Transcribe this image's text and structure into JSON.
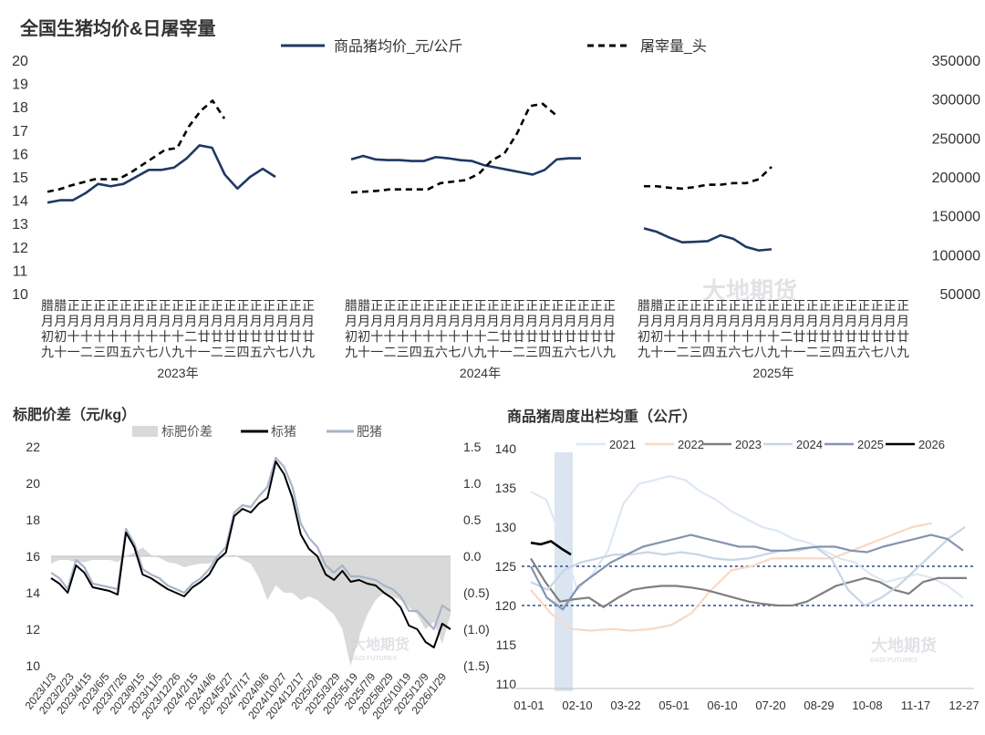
{
  "colors": {
    "navy": "#1f3864",
    "gray": "#999999",
    "shade": "#d9d9d9",
    "black": "#000000",
    "fat": "#a7b4c9",
    "band": "#dbe5f1",
    "ref": "#2e4a8a"
  },
  "watermark": {
    "cn": "大地期货",
    "en": "DADI FUTURES"
  },
  "chart_data": [
    {
      "type": "line",
      "title": "全国生猪均价&日屠宰量",
      "legend": [
        "商品猪均价_元/公斤",
        "屠宰量_头"
      ],
      "ylim": [
        10,
        20
      ],
      "yticks": [
        "20",
        "19",
        "18",
        "17",
        "16",
        "15",
        "14",
        "13",
        "12",
        "11",
        "10"
      ],
      "y2lim": [
        50000,
        350000
      ],
      "y2ticks": [
        "350000",
        "300000",
        "250000",
        "200000",
        "150000",
        "100000",
        "50000"
      ],
      "x_tick_labels": [
        "腊月初九",
        "腊月初十",
        "正月十一",
        "正月十二",
        "正月十三",
        "正月十四",
        "正月十五",
        "正月十六",
        "正月十七",
        "正月十八",
        "正月十九",
        "正月二十",
        "正月廿一",
        "正月廿二",
        "正月廿三",
        "正月廿四",
        "正月廿五",
        "正月廿六",
        "正月廿七",
        "正月廿八",
        "正月廿九"
      ],
      "groups": [
        {
          "name": "2023年",
          "price": [
            13.9,
            14.0,
            14.0,
            14.3,
            14.7,
            14.6,
            14.7,
            15.0,
            15.3,
            15.3,
            15.4,
            15.8,
            16.35,
            16.25,
            15.1,
            14.5,
            15.0,
            15.35,
            15.0
          ],
          "slaughter": [
            181000,
            184000,
            189000,
            193000,
            197000,
            197000,
            197000,
            205000,
            215000,
            225000,
            235000,
            237000,
            265000,
            285000,
            298000,
            275000
          ]
        },
        {
          "name": "2024年",
          "price": [
            15.75,
            15.9,
            15.75,
            15.72,
            15.72,
            15.68,
            15.68,
            15.85,
            15.8,
            15.72,
            15.68,
            15.5,
            15.4,
            15.3,
            15.2,
            15.1,
            15.3,
            15.75,
            15.8,
            15.8
          ],
          "slaughter": [
            180000,
            181000,
            182000,
            184000,
            184000,
            184000,
            184000,
            192000,
            194000,
            196000,
            204000,
            221000,
            230000,
            256000,
            291000,
            294000,
            280000
          ]
        },
        {
          "name": "2025年",
          "price": [
            12.8,
            12.65,
            12.4,
            12.2,
            12.22,
            12.25,
            12.5,
            12.35,
            12.0,
            11.85,
            11.9
          ],
          "slaughter": [
            188000,
            188000,
            186000,
            185000,
            187000,
            190000,
            190000,
            192000,
            192000,
            197000,
            213000
          ]
        }
      ]
    },
    {
      "type": "area",
      "title": "标肥价差（元/kg）",
      "legend": [
        "标肥价差",
        "标猪",
        "肥猪"
      ],
      "ylim": [
        10,
        22
      ],
      "yticks": [
        "22",
        "20",
        "18",
        "16",
        "14",
        "12",
        "10"
      ],
      "y2lim": [
        -1.5,
        1.5
      ],
      "y2ticks": [
        "1.5",
        "1.0",
        "0.5",
        "0.0",
        "(0.5)",
        "(1.0)",
        "(1.5)"
      ],
      "x_tick_labels": [
        "2023/1/3",
        "2023/2/23",
        "2023/4/15",
        "2023/6/5",
        "2023/7/26",
        "2023/9/15",
        "2023/11/5",
        "2023/12/26",
        "2024/2/15",
        "2024/4/6",
        "2024/5/27",
        "2024/7/17",
        "2024/9/6",
        "2024/10/27",
        "2024/12/17",
        "2025/2/6",
        "2025/3/29",
        "2025/5/19",
        "2025/7/9",
        "2025/8/29",
        "2025/10/19",
        "2025/12/9",
        "2026/1/29"
      ],
      "standard": [
        14.8,
        14.5,
        14.0,
        15.5,
        15.1,
        14.3,
        14.2,
        14.1,
        13.9,
        17.3,
        16.5,
        15.0,
        14.8,
        14.5,
        14.2,
        14.0,
        13.8,
        14.3,
        14.6,
        15.0,
        15.8,
        16.2,
        18.2,
        18.6,
        18.4,
        18.9,
        19.2,
        21.2,
        20.5,
        19.2,
        17.2,
        16.4,
        16.0,
        15.0,
        14.7,
        15.2,
        14.6,
        14.7,
        14.5,
        14.4,
        14.0,
        13.7,
        13.2,
        12.2,
        12.0,
        11.3,
        11.0,
        12.3,
        12.0
      ],
      "fat": [
        15.1,
        14.8,
        14.2,
        15.8,
        15.4,
        14.5,
        14.4,
        14.3,
        14.2,
        17.5,
        16.7,
        15.3,
        15.0,
        14.8,
        14.4,
        14.2,
        14.0,
        14.5,
        14.8,
        15.3,
        16.0,
        16.5,
        18.4,
        18.8,
        18.7,
        19.3,
        19.8,
        21.4,
        20.9,
        19.8,
        17.8,
        17.0,
        16.5,
        15.5,
        15.1,
        15.5,
        14.9,
        14.9,
        14.8,
        14.7,
        14.4,
        14.2,
        13.8,
        13.0,
        13.0,
        12.5,
        12.0,
        13.3,
        13.0
      ],
      "spread": [
        -0.1,
        -0.05,
        -0.05,
        -0.08,
        -0.08,
        -0.05,
        -0.05,
        -0.05,
        -0.08,
        0.0,
        0.05,
        0.12,
        0.02,
        -0.02,
        -0.08,
        -0.1,
        -0.15,
        -0.12,
        -0.1,
        -0.1,
        -0.05,
        0.0,
        0.02,
        -0.05,
        -0.1,
        -0.3,
        -0.6,
        -0.4,
        -0.5,
        -0.5,
        -0.6,
        -0.55,
        -0.6,
        -0.7,
        -0.8,
        -1.0,
        -1.5,
        -1.1,
        -0.8,
        -0.6,
        -0.5,
        -0.55,
        -0.6,
        -0.7,
        -0.8,
        -1.0,
        -0.9,
        -1.2,
        -0.8
      ]
    },
    {
      "type": "line",
      "title": "商品猪周度出栏均重（公斤）",
      "legend": [
        "2021",
        "2022",
        "2023",
        "2024",
        "2025",
        "2026"
      ],
      "ylim": [
        110,
        140
      ],
      "yticks": [
        "140",
        "135",
        "130",
        "125",
        "120",
        "115",
        "110"
      ],
      "x_tick_labels": [
        "01-01",
        "02-10",
        "03-22",
        "05-01",
        "06-10",
        "07-20",
        "08-29",
        "10-08",
        "11-17",
        "12-27"
      ],
      "ref_lines": [
        125,
        120
      ],
      "series": [
        {
          "name": "2021",
          "color": "#dde8f4",
          "values": [
            134.5,
            133.5,
            128.5,
            122.0,
            124.0,
            127.0,
            133.0,
            135.5,
            136.0,
            136.5,
            136.0,
            134.5,
            133.5,
            132.0,
            131.0,
            130.0,
            129.5,
            128.5,
            128.0,
            127.0,
            126.0,
            125.5,
            124.0,
            123.0,
            123.5,
            124.0,
            123.5,
            122.5,
            121.0
          ]
        },
        {
          "name": "2022",
          "color": "#f8d9c4",
          "values": [
            122.0,
            119.0,
            117.0,
            116.8,
            117.0,
            116.8,
            117.0,
            117.5,
            119.0,
            122.0,
            124.5,
            125.0,
            126.0,
            126.0,
            126.0,
            126.0,
            127.0,
            128.0,
            129.0,
            130.0,
            130.5
          ]
        },
        {
          "name": "2023",
          "color": "#7f7f7f",
          "values": [
            126.0,
            123.0,
            120.5,
            120.8,
            121.0,
            119.8,
            121.0,
            122.0,
            122.3,
            122.5,
            122.5,
            122.3,
            122.0,
            121.5,
            121.0,
            120.5,
            120.2,
            120.0,
            120.0,
            120.5,
            121.5,
            122.5,
            123.0,
            123.5,
            123.0,
            122.0,
            121.5,
            123.0,
            123.5,
            123.5,
            123.5
          ]
        },
        {
          "name": "2024",
          "color": "#c9d4e6",
          "values": [
            123.0,
            122.0,
            124.5,
            125.5,
            126.0,
            126.5,
            126.5,
            126.8,
            126.5,
            126.8,
            126.5,
            126.0,
            125.8,
            126.0,
            126.5,
            127.0,
            127.0,
            127.5,
            126.0,
            122.0,
            120.0,
            121.0,
            122.5,
            124.5,
            126.5,
            128.5,
            130.0
          ]
        },
        {
          "name": "2025",
          "color": "#8494b0",
          "values": [
            125.0,
            121.0,
            119.5,
            122.5,
            124.0,
            125.5,
            126.5,
            127.5,
            128.0,
            128.5,
            129.0,
            128.5,
            128.0,
            127.5,
            127.5,
            127.0,
            127.0,
            127.3,
            127.5,
            127.5,
            127.0,
            126.8,
            127.5,
            128.0,
            128.5,
            129.0,
            128.5,
            127.0
          ]
        },
        {
          "name": "2026",
          "color": "#000000",
          "values": [
            128.0,
            127.8,
            128.2,
            127.3,
            126.5
          ]
        }
      ]
    }
  ]
}
